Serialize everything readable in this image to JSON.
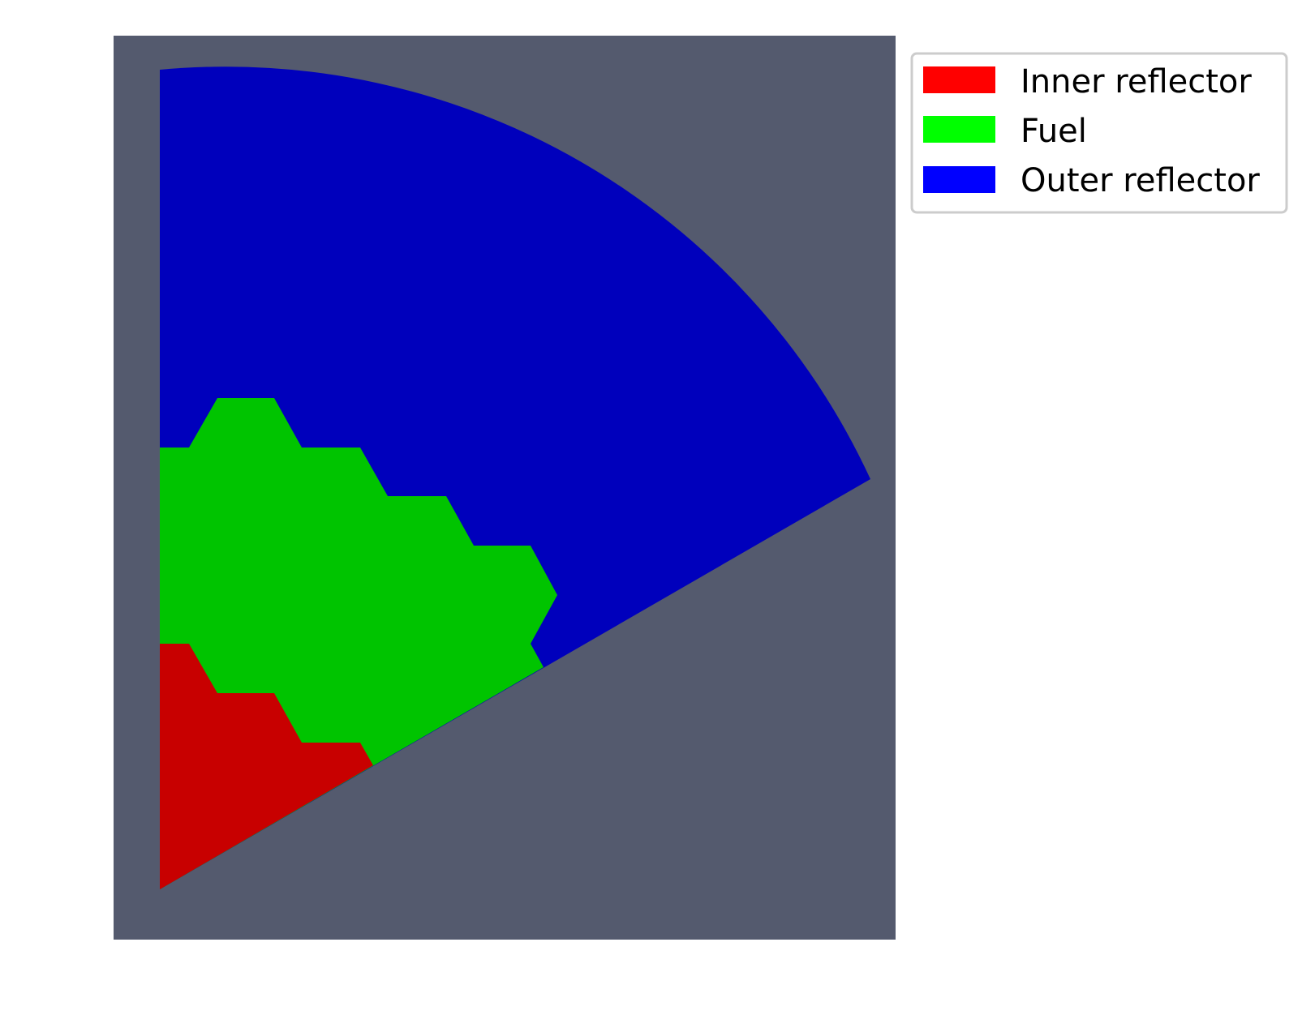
{
  "background_color": "#545a6e",
  "regions": [
    {
      "name": "Inner reflector",
      "fill": "#c80000"
    },
    {
      "name": "Fuel",
      "fill": "#00c400"
    },
    {
      "name": "Outer reflector",
      "fill": "#0000bc"
    }
  ],
  "legend": {
    "placement": "top-right-outside",
    "entries": [
      {
        "label": "Inner reflector",
        "swatch": "#ff0000"
      },
      {
        "label": "Fuel",
        "swatch": "#00ff00"
      },
      {
        "label": "Outer reflector",
        "swatch": "#0000ff"
      }
    ]
  }
}
